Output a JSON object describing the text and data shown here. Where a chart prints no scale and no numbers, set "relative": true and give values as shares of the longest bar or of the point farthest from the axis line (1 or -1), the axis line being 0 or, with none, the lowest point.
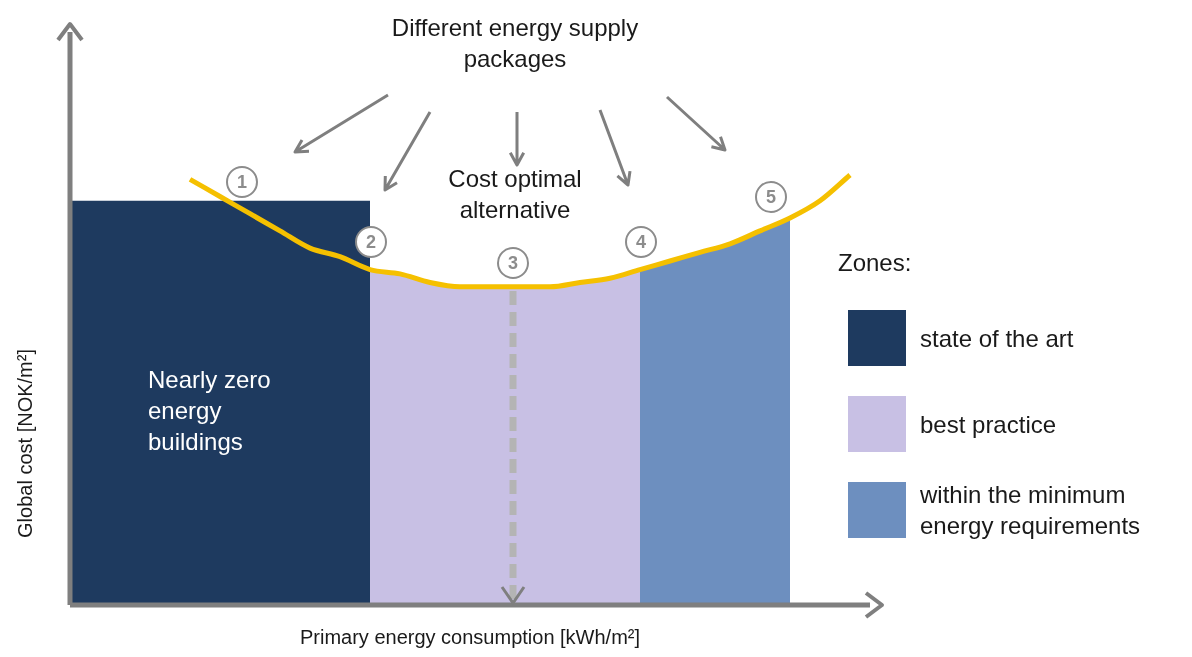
{
  "chart_data": {
    "type": "area",
    "relative": true,
    "title": "Different energy supply packages",
    "xlabel": "Primary energy consumption [kWh/m²]",
    "ylabel": "Global cost [NOK/m²]",
    "legend_title": "Zones:",
    "legend": "right",
    "categories": [
      null,
      null,
      null,
      null,
      null,
      null,
      null,
      null,
      null,
      null,
      null,
      null,
      null,
      null,
      null,
      null,
      null,
      null,
      null,
      null,
      null,
      null,
      null,
      null,
      null,
      null,
      null,
      null
    ],
    "series": [
      {
        "name": "state of the art",
        "color": "#1e3a5f",
        "values": [
          0.94,
          0.94,
          0.94,
          0.94,
          0.94,
          0.94,
          0.94,
          0.94,
          0.94,
          0.94,
          0.94,
          null,
          null,
          null,
          null,
          null,
          null,
          null,
          null,
          null,
          null,
          null,
          null,
          null,
          null,
          null,
          null,
          null
        ]
      },
      {
        "name": "best practice",
        "color": "#c8c0e4",
        "values": [
          null,
          null,
          null,
          null,
          null,
          null,
          null,
          null,
          null,
          null,
          0.78,
          0.77,
          0.75,
          0.74,
          0.74,
          0.74,
          0.74,
          0.75,
          0.76,
          0.78,
          null,
          null,
          null,
          null,
          null,
          null,
          null,
          null
        ]
      },
      {
        "name": "within the minimum energy requirements",
        "color": "#6d8fbf",
        "values": [
          null,
          null,
          null,
          null,
          null,
          null,
          null,
          null,
          null,
          null,
          null,
          null,
          null,
          null,
          null,
          null,
          null,
          null,
          null,
          0.78,
          0.8,
          0.82,
          0.84,
          0.87,
          0.9,
          null,
          null,
          null
        ]
      },
      {
        "type": "line",
        "color": "#f5c000",
        "values": [
          null,
          null,
          null,
          null,
          0.99,
          0.95,
          0.91,
          0.87,
          0.83,
          0.81,
          0.78,
          0.77,
          0.75,
          0.74,
          0.74,
          0.74,
          0.74,
          0.75,
          0.76,
          0.78,
          0.8,
          0.82,
          0.84,
          0.87,
          0.9,
          0.94,
          1,
          null
        ]
      }
    ],
    "annotations": [
      "1",
      "2",
      "3",
      "4",
      "5",
      "Cost optimal alternative",
      "Nearly zero energy buildings"
    ]
  }
}
